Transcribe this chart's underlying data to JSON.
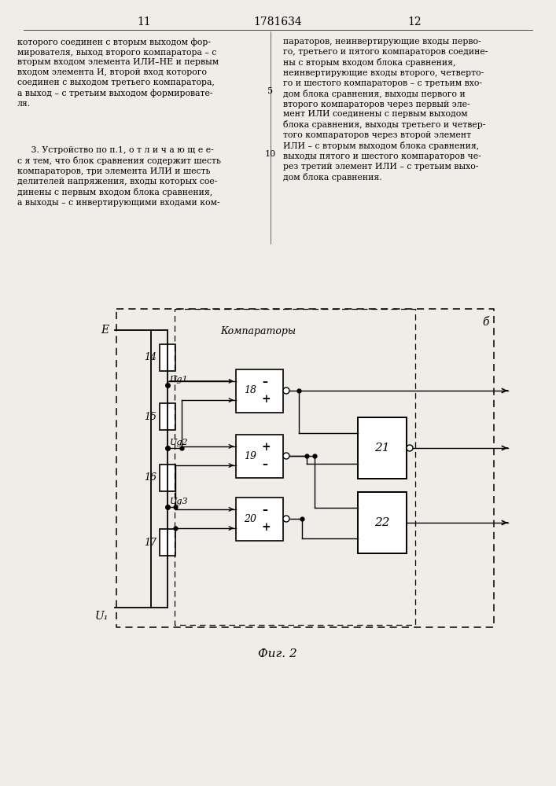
{
  "page_number_left": "11",
  "page_number_right": "12",
  "patent_number": "1781634",
  "fig_label": "Фиг. 2",
  "label_b": "б",
  "label_komparatory": "Компараторы",
  "label_E": "E",
  "label_U1": "U₁",
  "bg_color": "#f0ede8",
  "text_left1": "которого соединен с вторым выходом фор-\nмирователя, выход второго компаратора – с\nвторым входом элемента ИЛИ–НЕ и первым\nвходом элемента И, второй вход которого\nсоединен с выходом третьего компаратора,\nа выход – с третьим выходом формировате-\nля.",
  "text_left2": "     3. Устройство по п.1, о т л и ч а ю щ е е-\nс я тем, что блок сравнения содержит шесть\nкомпараторов, три элемента ИЛИ и шесть\nделителей напряжения, входы которых сое-\nдинены с первым входом блока сравнения,\nа выходы – с инвертирующими входами ком-",
  "text_right": "параторов, неинвертирующие входы перво-\nго, третьего и пятого компараторов соедине-\nны с вторым входом блока сравнения,\nнеинвертирующие входы второго, четверто-\nго и шестого компараторов – с третьим вхо-\nдом блока сравнения, выходы первого и\nвторого компараторов через первый эле-\nмент ИЛИ соединены с первым выходом\nблока сравнения, выходы третьего и четвер-\nтого компараторов через второй элемент\nИЛИ – с вторым выходом блока сравнения,\nвыходы пятого и шестого компараторов че-\nрез третий элемент ИЛИ – с третьим выхо-\nдом блока сравнения."
}
